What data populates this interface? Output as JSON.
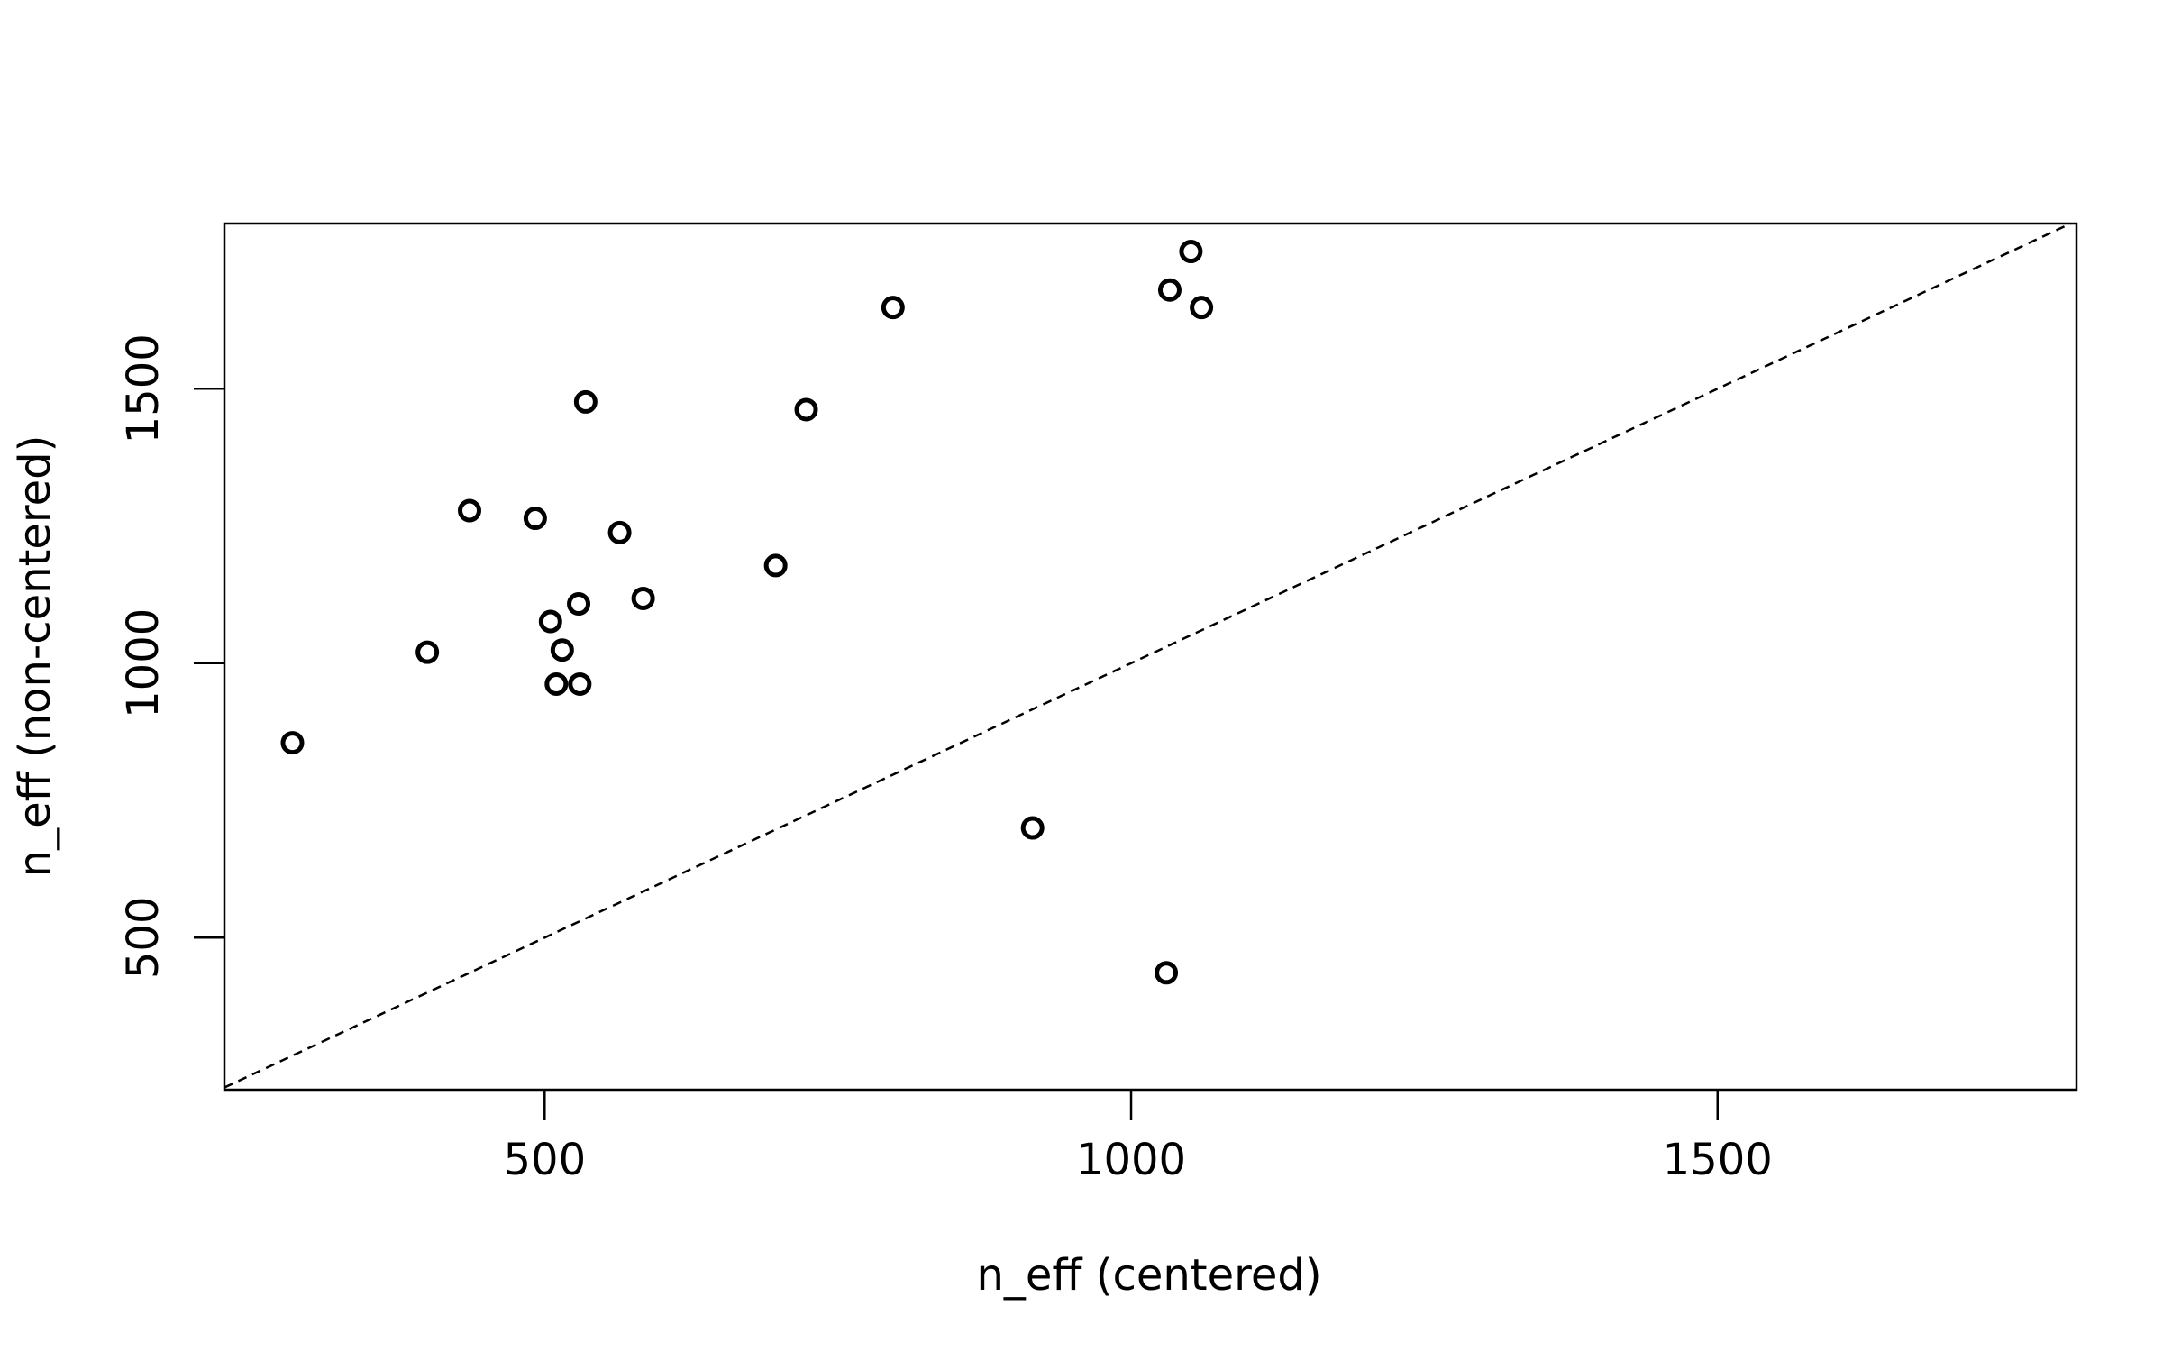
{
  "chart_data": {
    "type": "scatter",
    "title": "",
    "xlabel": "n_eff (centered)",
    "ylabel": "n_eff (non-centered)",
    "xlim": [
      227,
      1806
    ],
    "ylim": [
      223,
      1801
    ],
    "x_ticks": [
      500,
      1000,
      1500
    ],
    "y_ticks": [
      500,
      1000,
      1500
    ],
    "grid": false,
    "reference_line": {
      "type": "identity",
      "style": "dashed"
    },
    "colors": {
      "points": "#000000",
      "axes": "#000000",
      "background": "#ffffff"
    },
    "points": [
      {
        "x": 285,
        "y": 855
      },
      {
        "x": 400,
        "y": 1020
      },
      {
        "x": 436,
        "y": 1278
      },
      {
        "x": 492,
        "y": 1264
      },
      {
        "x": 505,
        "y": 1076
      },
      {
        "x": 510,
        "y": 962
      },
      {
        "x": 515,
        "y": 1024
      },
      {
        "x": 529,
        "y": 1108
      },
      {
        "x": 530,
        "y": 962
      },
      {
        "x": 535,
        "y": 1476
      },
      {
        "x": 564,
        "y": 1238
      },
      {
        "x": 584,
        "y": 1118
      },
      {
        "x": 697,
        "y": 1178
      },
      {
        "x": 723,
        "y": 1462
      },
      {
        "x": 797,
        "y": 1648
      },
      {
        "x": 916,
        "y": 700
      },
      {
        "x": 1030,
        "y": 436
      },
      {
        "x": 1033,
        "y": 1680
      },
      {
        "x": 1051,
        "y": 1750
      },
      {
        "x": 1060,
        "y": 1648
      }
    ]
  }
}
